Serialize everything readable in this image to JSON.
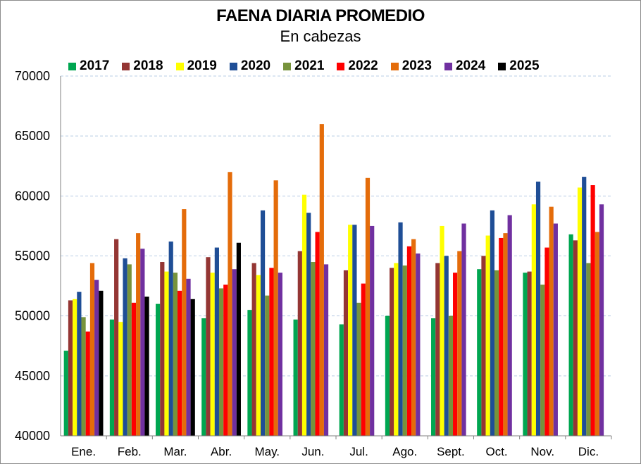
{
  "chart_data": {
    "type": "bar",
    "title": "FAENA DIARIA PROMEDIO",
    "subtitle": "En cabezas",
    "categories": [
      "Ene.",
      "Feb.",
      "Mar.",
      "Abr.",
      "May.",
      "Jun.",
      "Jul.",
      "Ago.",
      "Sept.",
      "Oct.",
      "Nov.",
      "Dic."
    ],
    "ylim": [
      40000,
      70000
    ],
    "yticks": [
      40000,
      45000,
      50000,
      55000,
      60000,
      65000,
      70000
    ],
    "grid": "horizontal dashed",
    "legend_position": "top",
    "series": [
      {
        "name": "2017",
        "color": "#00A651",
        "values": [
          47100,
          49700,
          51000,
          49800,
          50500,
          49700,
          49300,
          50000,
          49800,
          53900,
          53600,
          56800
        ]
      },
      {
        "name": "2018",
        "color": "#943634",
        "values": [
          51300,
          56400,
          54500,
          54900,
          54400,
          55400,
          53800,
          54000,
          54400,
          55000,
          53700,
          56300
        ]
      },
      {
        "name": "2019",
        "color": "#FFFF00",
        "values": [
          51400,
          49500,
          53700,
          53600,
          53400,
          60100,
          57600,
          54400,
          57500,
          56700,
          59300,
          60700
        ]
      },
      {
        "name": "2020",
        "color": "#1F4E96",
        "values": [
          52000,
          54800,
          56200,
          55700,
          58800,
          58600,
          57600,
          57800,
          55000,
          58800,
          61200,
          61600
        ]
      },
      {
        "name": "2021",
        "color": "#77933C",
        "values": [
          49900,
          54300,
          53600,
          52300,
          51700,
          54500,
          51100,
          54200,
          50000,
          53800,
          52600,
          54400
        ]
      },
      {
        "name": "2022",
        "color": "#FF0000",
        "values": [
          48700,
          51100,
          52100,
          52600,
          54000,
          57000,
          52700,
          55800,
          53600,
          56500,
          55700,
          60900
        ]
      },
      {
        "name": "2023",
        "color": "#E46C0A",
        "values": [
          54400,
          56900,
          58900,
          62000,
          61300,
          66000,
          61500,
          56400,
          55400,
          56900,
          59100,
          57000
        ]
      },
      {
        "name": "2024",
        "color": "#7030A0",
        "values": [
          53000,
          55600,
          53100,
          53900,
          53600,
          54300,
          57500,
          55200,
          57700,
          58400,
          57700,
          59300
        ]
      },
      {
        "name": "2025",
        "color": "#000000",
        "values": [
          52100,
          51600,
          51400,
          56100,
          null,
          null,
          null,
          null,
          null,
          null,
          null,
          null
        ]
      }
    ]
  }
}
